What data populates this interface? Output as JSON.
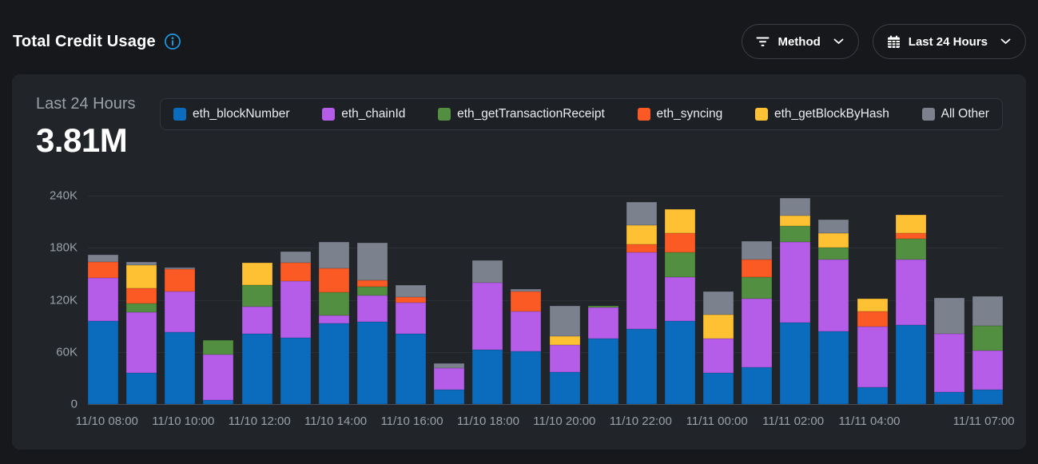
{
  "header": {
    "title": "Total Credit Usage",
    "filters": [
      {
        "id": "method",
        "label": "Method",
        "icon": "filter-icon"
      },
      {
        "id": "range",
        "label": "Last 24 Hours",
        "icon": "calendar-icon"
      }
    ]
  },
  "summary": {
    "period": "Last 24 Hours",
    "total": "3.81M"
  },
  "chart_data": {
    "type": "bar",
    "stacked": true,
    "title": "Total Credit Usage",
    "unit": "credits",
    "values_scale": "thousands",
    "ylim": [
      0,
      240
    ],
    "yticks": [
      {
        "value": 0,
        "label": "0"
      },
      {
        "value": 60,
        "label": "60K"
      },
      {
        "value": 120,
        "label": "120K"
      },
      {
        "value": 180,
        "label": "180K"
      },
      {
        "value": 240,
        "label": "240K"
      }
    ],
    "categories": [
      "11/10 08:00",
      "11/10 09:00",
      "11/10 10:00",
      "11/10 11:00",
      "11/10 12:00",
      "11/10 13:00",
      "11/10 14:00",
      "11/10 15:00",
      "11/10 16:00",
      "11/10 17:00",
      "11/10 18:00",
      "11/10 19:00",
      "11/10 20:00",
      "11/10 21:00",
      "11/10 22:00",
      "11/10 23:00",
      "11/11 00:00",
      "11/11 01:00",
      "11/11 02:00",
      "11/11 03:00",
      "11/11 04:00",
      "11/11 05:00",
      "11/11 06:00",
      "11/11 07:00"
    ],
    "xtick_labels": [
      "11/10 08:00",
      "",
      "11/10 10:00",
      "",
      "11/10 12:00",
      "",
      "11/10 14:00",
      "",
      "11/10 16:00",
      "",
      "11/10 18:00",
      "",
      "11/10 20:00",
      "",
      "11/10 22:00",
      "",
      "11/11 00:00",
      "",
      "11/11 02:00",
      "",
      "11/11 04:00",
      "",
      "",
      "11/11 07:00"
    ],
    "legend_position": "top",
    "grid": "horizontal",
    "series": [
      {
        "name": "eth_blockNumber",
        "color": "#0b6cbd",
        "values": [
          96,
          36,
          83,
          5,
          81,
          76,
          93,
          95,
          81,
          17,
          63,
          61,
          37,
          75,
          86,
          96,
          36,
          42,
          94,
          84,
          19,
          91,
          14,
          17
        ]
      },
      {
        "name": "eth_chainId",
        "color": "#b55ce9",
        "values": [
          49,
          70,
          47,
          52,
          31,
          66,
          9,
          30,
          36,
          24,
          77,
          46,
          31,
          36,
          89,
          50,
          39,
          79,
          93,
          82,
          70,
          75,
          67,
          45
        ]
      },
      {
        "name": "eth_getTransactionReceipt",
        "color": "#538f40",
        "values": [
          0,
          10,
          0,
          17,
          25,
          0,
          27,
          10,
          0,
          0,
          0,
          0,
          0,
          2,
          0,
          29,
          0,
          25,
          18,
          14,
          0,
          24,
          0,
          28
        ]
      },
      {
        "name": "eth_syncing",
        "color": "#fc5a24",
        "values": [
          19,
          17,
          25,
          0,
          0,
          21,
          27,
          8,
          6,
          0,
          0,
          23,
          0,
          0,
          9,
          22,
          0,
          20,
          0,
          0,
          18,
          7,
          0,
          0
        ]
      },
      {
        "name": "eth_getBlockByHash",
        "color": "#fdc133",
        "values": [
          0,
          27,
          0,
          0,
          26,
          0,
          0,
          0,
          0,
          0,
          0,
          0,
          10,
          0,
          22,
          27,
          28,
          0,
          12,
          17,
          14,
          21,
          0,
          0
        ]
      },
      {
        "name": "All Other",
        "color": "#7b818d",
        "values": [
          8,
          4,
          2,
          0,
          0,
          13,
          31,
          43,
          14,
          6,
          26,
          2,
          35,
          0,
          27,
          0,
          27,
          22,
          20,
          15,
          0,
          0,
          41,
          34
        ]
      }
    ]
  },
  "colors": {
    "page_bg": "#16181b",
    "card_bg": "#212428",
    "legend_bg": "#1d2024",
    "grid_line": "#2c2f34",
    "axis_line": "#4a4e54",
    "muted_text": "#9aa0a8",
    "accent_blue": "#1d9ce4"
  }
}
